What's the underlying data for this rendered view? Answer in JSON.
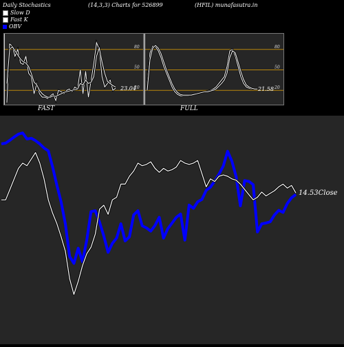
{
  "header": {
    "left": "Daily Stochastics",
    "center": "(14,3,3) Charts for 526899",
    "right": "(HFIL) munafasutra.in"
  },
  "legend": [
    {
      "label": "Slow  D",
      "color": "#ffffff"
    },
    {
      "label": "Fast K",
      "color": "#ffffff"
    },
    {
      "label": "OBV",
      "color": "#0000ff"
    }
  ],
  "colors": {
    "accent": "#0000ff",
    "band": "#b8860b",
    "line": "#ffffff"
  },
  "chart_data": [
    {
      "type": "line",
      "name": "FAST",
      "ylim": [
        0,
        100
      ],
      "levels": [
        80,
        50,
        20
      ],
      "level_labels": [
        "80",
        "50",
        "20"
      ],
      "last_value_label": "23.04",
      "series": [
        {
          "name": "Fast K",
          "values": [
            2,
            88,
            85,
            70,
            80,
            60,
            58,
            70,
            45,
            40,
            15,
            30,
            15,
            10,
            10,
            8,
            12,
            15,
            5,
            20,
            18,
            15,
            20,
            22,
            18,
            25,
            22,
            50,
            15,
            48,
            10,
            35,
            60,
            90,
            80,
            40,
            25,
            30,
            35,
            20,
            23
          ]
        },
        {
          "name": "Slow  D",
          "values": [
            30,
            80,
            84,
            78,
            72,
            66,
            62,
            60,
            55,
            45,
            32,
            28,
            20,
            15,
            12,
            10,
            10,
            12,
            11,
            13,
            15,
            17,
            18,
            19,
            20,
            21,
            22,
            30,
            28,
            35,
            30,
            32,
            40,
            70,
            82,
            62,
            45,
            33,
            30,
            27,
            25
          ]
        }
      ]
    },
    {
      "type": "line",
      "name": "FULL",
      "ylim": [
        0,
        100
      ],
      "levels": [
        80,
        50,
        20
      ],
      "level_labels": [
        "80",
        "50",
        "20"
      ],
      "last_value_label": "21.58",
      "series": [
        {
          "name": "Fast K",
          "values": [
            30,
            75,
            85,
            84,
            78,
            68,
            55,
            45,
            35,
            25,
            18,
            14,
            12,
            12,
            12,
            12,
            13,
            14,
            15,
            16,
            17,
            18,
            19,
            20,
            22,
            25,
            30,
            35,
            40,
            55,
            78,
            80,
            70,
            55,
            40,
            30,
            25,
            23,
            22,
            22,
            22
          ]
        },
        {
          "name": "Slow  D",
          "values": [
            20,
            65,
            82,
            86,
            82,
            74,
            62,
            50,
            40,
            30,
            22,
            17,
            14,
            13,
            13,
            13,
            13,
            14,
            15,
            16,
            17,
            18,
            18,
            19,
            20,
            22,
            26,
            30,
            35,
            45,
            68,
            78,
            75,
            62,
            48,
            36,
            28,
            25,
            23,
            22,
            22
          ]
        }
      ]
    },
    {
      "type": "line",
      "name": "price-obv",
      "close_label": "14.53",
      "close_suffix": "Close",
      "series": [
        {
          "name": "Close",
          "values": [
            14.0,
            14.0,
            14.8,
            15.6,
            16.4,
            16.8,
            16.6,
            17.1,
            17.6,
            16.8,
            15.6,
            14.0,
            13.0,
            12.2,
            11.2,
            10.1,
            8.0,
            6.8,
            7.8,
            9.0,
            9.9,
            10.4,
            11.4,
            13.3,
            13.6,
            12.9,
            14.0,
            14.2,
            15.2,
            15.2,
            15.8,
            16.2,
            16.8,
            16.6,
            16.7,
            16.9,
            16.4,
            16.1,
            16.4,
            16.2,
            16.3,
            16.5,
            17.0,
            16.8,
            16.7,
            16.8,
            17.0,
            16.0,
            15.0,
            15.6,
            15.4,
            15.8,
            15.9,
            15.8,
            15.6,
            15.5,
            15.2,
            14.8,
            14.4,
            14.0,
            14.2,
            14.6,
            14.3,
            14.5,
            14.7,
            15.0,
            15.2,
            14.9,
            15.1,
            14.53
          ]
        },
        {
          "name": "OBV",
          "values": [
            45.6,
            45.8,
            46.5,
            47.3,
            48.0,
            48.3,
            46.8,
            47.0,
            46.4,
            45.6,
            44.6,
            43.9,
            40.0,
            35.5,
            31.4,
            26.0,
            18.0,
            16.3,
            20.0,
            16.7,
            22.0,
            29.0,
            29.2,
            26.4,
            23.0,
            19.0,
            21.2,
            22.5,
            26.0,
            21.8,
            22.8,
            28.2,
            29.2,
            25.5,
            25.0,
            24.2,
            25.6,
            27.6,
            22.5,
            24.8,
            26.2,
            27.6,
            28.4,
            22.0,
            30.6,
            29.8,
            31.4,
            32.0,
            34.2,
            35.0,
            36.5,
            38.2,
            40.2,
            43.8,
            41.4,
            37.6,
            30.4,
            36.6,
            36.4,
            35.6,
            24.0,
            26.0,
            26.2,
            26.5,
            28.2,
            29.3,
            28.8,
            31.0,
            32.4,
            33.2
          ]
        }
      ]
    }
  ],
  "fast_label": "FAST",
  "full_label": "FULL"
}
